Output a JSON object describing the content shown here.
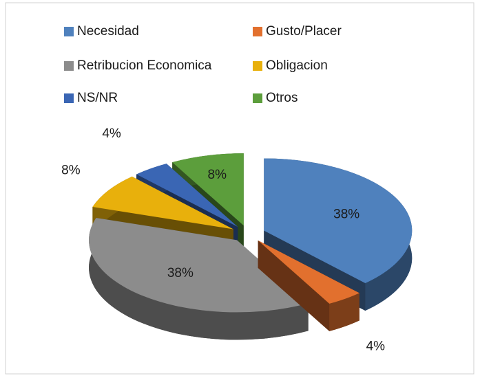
{
  "chart_data": {
    "type": "pie",
    "three_d": true,
    "exploded": true,
    "categories": [
      "Necesidad",
      "Gusto/Placer",
      "Retribucion Economica",
      "Obligacion",
      "NS/NR",
      "Otros"
    ],
    "values": [
      38,
      4,
      38,
      8,
      4,
      8
    ],
    "value_labels": [
      "38%",
      "4%",
      "38%",
      "8%",
      "4%",
      "8%"
    ],
    "colors": [
      "#4f81bd",
      "#e2702e",
      "#8c8c8c",
      "#e8b00c",
      "#3a66b4",
      "#5c9e3c"
    ],
    "legend": "top"
  }
}
